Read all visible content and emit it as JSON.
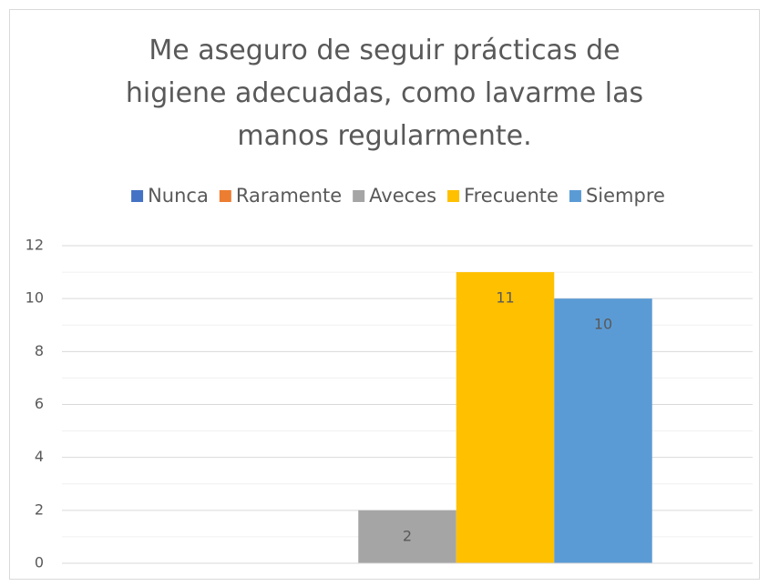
{
  "chart_data": {
    "type": "bar",
    "title": "Me aseguro de seguir prácticas de higiene adecuadas, como lavarme las manos regularmente.",
    "categories": [
      null
    ],
    "series": [
      {
        "name": "Nunca",
        "color": "#4472c4",
        "values": [
          0
        ]
      },
      {
        "name": "Raramente",
        "color": "#ed7d31",
        "values": [
          0
        ]
      },
      {
        "name": "Aveces",
        "color": "#a5a5a5",
        "values": [
          2
        ]
      },
      {
        "name": "Frecuente",
        "color": "#ffc000",
        "values": [
          11
        ]
      },
      {
        "name": "Siempre",
        "color": "#5b9bd5",
        "values": [
          10
        ]
      }
    ],
    "data_labels": [
      "Aveces",
      "Frecuente",
      "Siempre"
    ],
    "ylim": [
      0,
      12
    ],
    "yticks": [
      0,
      2,
      4,
      6,
      8,
      10,
      12
    ],
    "grid": true,
    "minor_grid": true,
    "legend": "top"
  }
}
